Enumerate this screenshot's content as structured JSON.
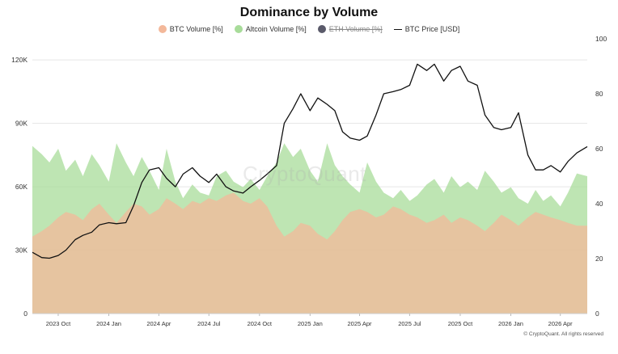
{
  "chart_data": {
    "type": "area",
    "title": "Dominance by Volume",
    "legend": [
      {
        "label": "BTC Volume [%]",
        "color": "#f3b89a",
        "marker": "circle"
      },
      {
        "label": "Altcoin Volume [%]",
        "color": "#a8dc9a",
        "marker": "circle"
      },
      {
        "label": "ETH Volume [%]",
        "color": "#5a5a6a",
        "marker": "circle",
        "hidden": true
      },
      {
        "label": "BTC Price [USD]",
        "color": "#111111",
        "marker": "line"
      }
    ],
    "legend_position": "top-center",
    "x_ticks": [
      "2023 Oct",
      "2024 Jan",
      "2024 Apr",
      "2024 Jul",
      "2024 Oct",
      "2025 Jan",
      "2025 Apr",
      "2025 Jul",
      "2025 Oct",
      "2026 Jan",
      "2026 Apr"
    ],
    "x_range": [
      "2023-08-15",
      "2026-05-20"
    ],
    "y_left": {
      "ticks": [
        "0",
        "30K",
        "60K",
        "90K",
        "120K"
      ],
      "range": [
        0,
        130000
      ]
    },
    "y_right": {
      "ticks": [
        "0",
        "20",
        "40",
        "60",
        "80",
        "100"
      ],
      "range": [
        0,
        100
      ]
    },
    "grid": "horizontal",
    "series": [
      {
        "name": "Altcoin Volume [%]",
        "axis": "right",
        "color": "#a8dc9a",
        "x": [
          "2023-08-15",
          "2023-09-01",
          "2023-09-15",
          "2023-10-01",
          "2023-10-15",
          "2023-11-01",
          "2023-11-15",
          "2023-12-01",
          "2023-12-15",
          "2024-01-01",
          "2024-01-15",
          "2024-02-01",
          "2024-02-15",
          "2024-03-01",
          "2024-03-15",
          "2024-04-01",
          "2024-04-15",
          "2024-05-01",
          "2024-05-15",
          "2024-06-01",
          "2024-06-15",
          "2024-07-01",
          "2024-07-15",
          "2024-08-01",
          "2024-08-15",
          "2024-09-01",
          "2024-09-15",
          "2024-10-01",
          "2024-10-15",
          "2024-11-01",
          "2024-11-15",
          "2024-12-01",
          "2024-12-15",
          "2025-01-01",
          "2025-01-15",
          "2025-02-01",
          "2025-02-15",
          "2025-03-01",
          "2025-03-15",
          "2025-04-01",
          "2025-04-15",
          "2025-05-01",
          "2025-05-15",
          "2025-06-01",
          "2025-06-15",
          "2025-07-01",
          "2025-07-15",
          "2025-08-01",
          "2025-08-15",
          "2025-09-01",
          "2025-09-15",
          "2025-10-01",
          "2025-10-15",
          "2025-11-01",
          "2025-11-15",
          "2025-12-01",
          "2025-12-15",
          "2026-01-01",
          "2026-01-15",
          "2026-02-01",
          "2026-02-15",
          "2026-03-01",
          "2026-03-15",
          "2026-04-01",
          "2026-04-15",
          "2026-05-01",
          "2026-05-20"
        ],
        "values": [
          61,
          58,
          55,
          60,
          52,
          56,
          50,
          58,
          54,
          48,
          62,
          55,
          50,
          57,
          52,
          45,
          60,
          48,
          42,
          47,
          44,
          43,
          50,
          52,
          48,
          46,
          49,
          45,
          50,
          55,
          62,
          57,
          60,
          52,
          48,
          62,
          54,
          50,
          47,
          44,
          55,
          48,
          44,
          42,
          45,
          41,
          43,
          47,
          49,
          44,
          50,
          46,
          48,
          45,
          52,
          48,
          44,
          46,
          42,
          40,
          45,
          41,
          43,
          39,
          44,
          51,
          50
        ]
      },
      {
        "name": "BTC Volume [%]",
        "axis": "right",
        "color": "#f3b89a",
        "x": [
          "2023-08-15",
          "2023-09-01",
          "2023-09-15",
          "2023-10-01",
          "2023-10-15",
          "2023-11-01",
          "2023-11-15",
          "2023-12-01",
          "2023-12-15",
          "2024-01-01",
          "2024-01-15",
          "2024-02-01",
          "2024-02-15",
          "2024-03-01",
          "2024-03-15",
          "2024-04-01",
          "2024-04-15",
          "2024-05-01",
          "2024-05-15",
          "2024-06-01",
          "2024-06-15",
          "2024-07-01",
          "2024-07-15",
          "2024-08-01",
          "2024-08-15",
          "2024-09-01",
          "2024-09-15",
          "2024-10-01",
          "2024-10-15",
          "2024-11-01",
          "2024-11-15",
          "2024-12-01",
          "2024-12-15",
          "2025-01-01",
          "2025-01-15",
          "2025-02-01",
          "2025-02-15",
          "2025-03-01",
          "2025-03-15",
          "2025-04-01",
          "2025-04-15",
          "2025-05-01",
          "2025-05-15",
          "2025-06-01",
          "2025-06-15",
          "2025-07-01",
          "2025-07-15",
          "2025-08-01",
          "2025-08-15",
          "2025-09-01",
          "2025-09-15",
          "2025-10-01",
          "2025-10-15",
          "2025-11-01",
          "2025-11-15",
          "2025-12-01",
          "2025-12-15",
          "2026-01-01",
          "2026-01-15",
          "2026-02-01",
          "2026-02-15",
          "2026-03-01",
          "2026-03-15",
          "2026-04-01",
          "2026-04-15",
          "2026-05-01",
          "2026-05-20"
        ],
        "values": [
          28,
          30,
          32,
          35,
          37,
          36,
          34,
          38,
          40,
          36,
          33,
          37,
          40,
          39,
          36,
          38,
          42,
          40,
          38,
          41,
          40,
          42,
          41,
          43,
          44,
          41,
          40,
          42,
          39,
          32,
          28,
          30,
          33,
          32,
          29,
          27,
          30,
          34,
          37,
          38,
          37,
          35,
          36,
          39,
          38,
          36,
          35,
          33,
          34,
          36,
          33,
          35,
          34,
          32,
          30,
          33,
          36,
          34,
          32,
          35,
          37,
          36,
          35,
          34,
          33,
          32,
          32
        ]
      },
      {
        "name": "BTC Price [USD]",
        "axis": "left",
        "color": "#111111",
        "x": [
          "2023-08-15",
          "2023-09-01",
          "2023-09-15",
          "2023-10-01",
          "2023-10-15",
          "2023-11-01",
          "2023-11-15",
          "2023-12-01",
          "2023-12-15",
          "2024-01-01",
          "2024-01-15",
          "2024-02-01",
          "2024-02-15",
          "2024-03-01",
          "2024-03-15",
          "2024-04-01",
          "2024-04-15",
          "2024-05-01",
          "2024-05-15",
          "2024-06-01",
          "2024-06-15",
          "2024-07-01",
          "2024-07-15",
          "2024-08-01",
          "2024-08-15",
          "2024-09-01",
          "2024-09-15",
          "2024-10-01",
          "2024-10-15",
          "2024-11-01",
          "2024-11-15",
          "2024-12-01",
          "2024-12-15",
          "2025-01-01",
          "2025-01-15",
          "2025-02-01",
          "2025-02-15",
          "2025-03-01",
          "2025-03-15",
          "2025-04-01",
          "2025-04-15",
          "2025-05-01",
          "2025-05-15",
          "2025-06-01",
          "2025-06-15",
          "2025-07-01",
          "2025-07-15",
          "2025-08-01",
          "2025-08-15",
          "2025-09-01",
          "2025-09-15",
          "2025-10-01",
          "2025-10-15",
          "2025-11-01",
          "2025-11-15",
          "2025-12-01",
          "2025-12-15",
          "2026-01-01",
          "2026-01-15",
          "2026-02-01",
          "2026-02-15",
          "2026-03-01",
          "2026-03-15",
          "2026-04-01",
          "2026-04-15",
          "2026-05-01",
          "2026-05-20"
        ],
        "values": [
          29000,
          26500,
          26200,
          27500,
          30000,
          35000,
          37000,
          38500,
          42000,
          43000,
          42500,
          43000,
          51000,
          62000,
          68000,
          69000,
          64000,
          60000,
          66000,
          69000,
          65000,
          62000,
          66000,
          60000,
          58000,
          57000,
          60000,
          63000,
          66000,
          70000,
          90000,
          97000,
          104000,
          96000,
          102000,
          99000,
          96000,
          86000,
          83000,
          82000,
          84000,
          94000,
          104000,
          105000,
          106000,
          108000,
          118000,
          115000,
          118000,
          110000,
          115000,
          117000,
          110000,
          108000,
          94000,
          88000,
          87000,
          88000,
          95000,
          75000,
          68000,
          68000,
          70000,
          67000,
          72000,
          76000,
          79000
        ]
      }
    ]
  },
  "footer": {
    "watermark": "CryptoQuant",
    "credit": "© CryptoQuant. All rights reserved"
  }
}
